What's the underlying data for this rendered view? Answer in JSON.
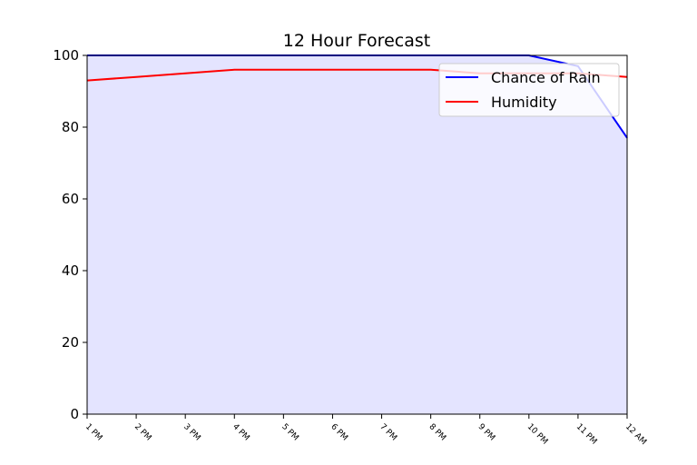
{
  "chart_data": {
    "type": "line",
    "title": "12 Hour Forecast",
    "xlabel": "",
    "ylabel": "",
    "categories": [
      "1 PM",
      "2 PM",
      "3 PM",
      "4 PM",
      "5 PM",
      "6 PM",
      "7 PM",
      "8 PM",
      "9 PM",
      "10 PM",
      "11 PM",
      "12 AM"
    ],
    "ylim": [
      0,
      100
    ],
    "yticks": [
      0,
      20,
      40,
      60,
      80,
      100
    ],
    "series": [
      {
        "name": "Chance of Rain",
        "color": "#0000ff",
        "values": [
          100,
          100,
          100,
          100,
          100,
          100,
          100,
          100,
          100,
          100,
          97,
          77
        ],
        "fill": true,
        "fill_color": "#e4e4ff"
      },
      {
        "name": "Humidity",
        "color": "#ff0000",
        "values": [
          93,
          94,
          95,
          96,
          96,
          96,
          96,
          96,
          95,
          95,
          95,
          94
        ]
      }
    ],
    "legend": {
      "placement": "top-right"
    },
    "grid": false
  }
}
